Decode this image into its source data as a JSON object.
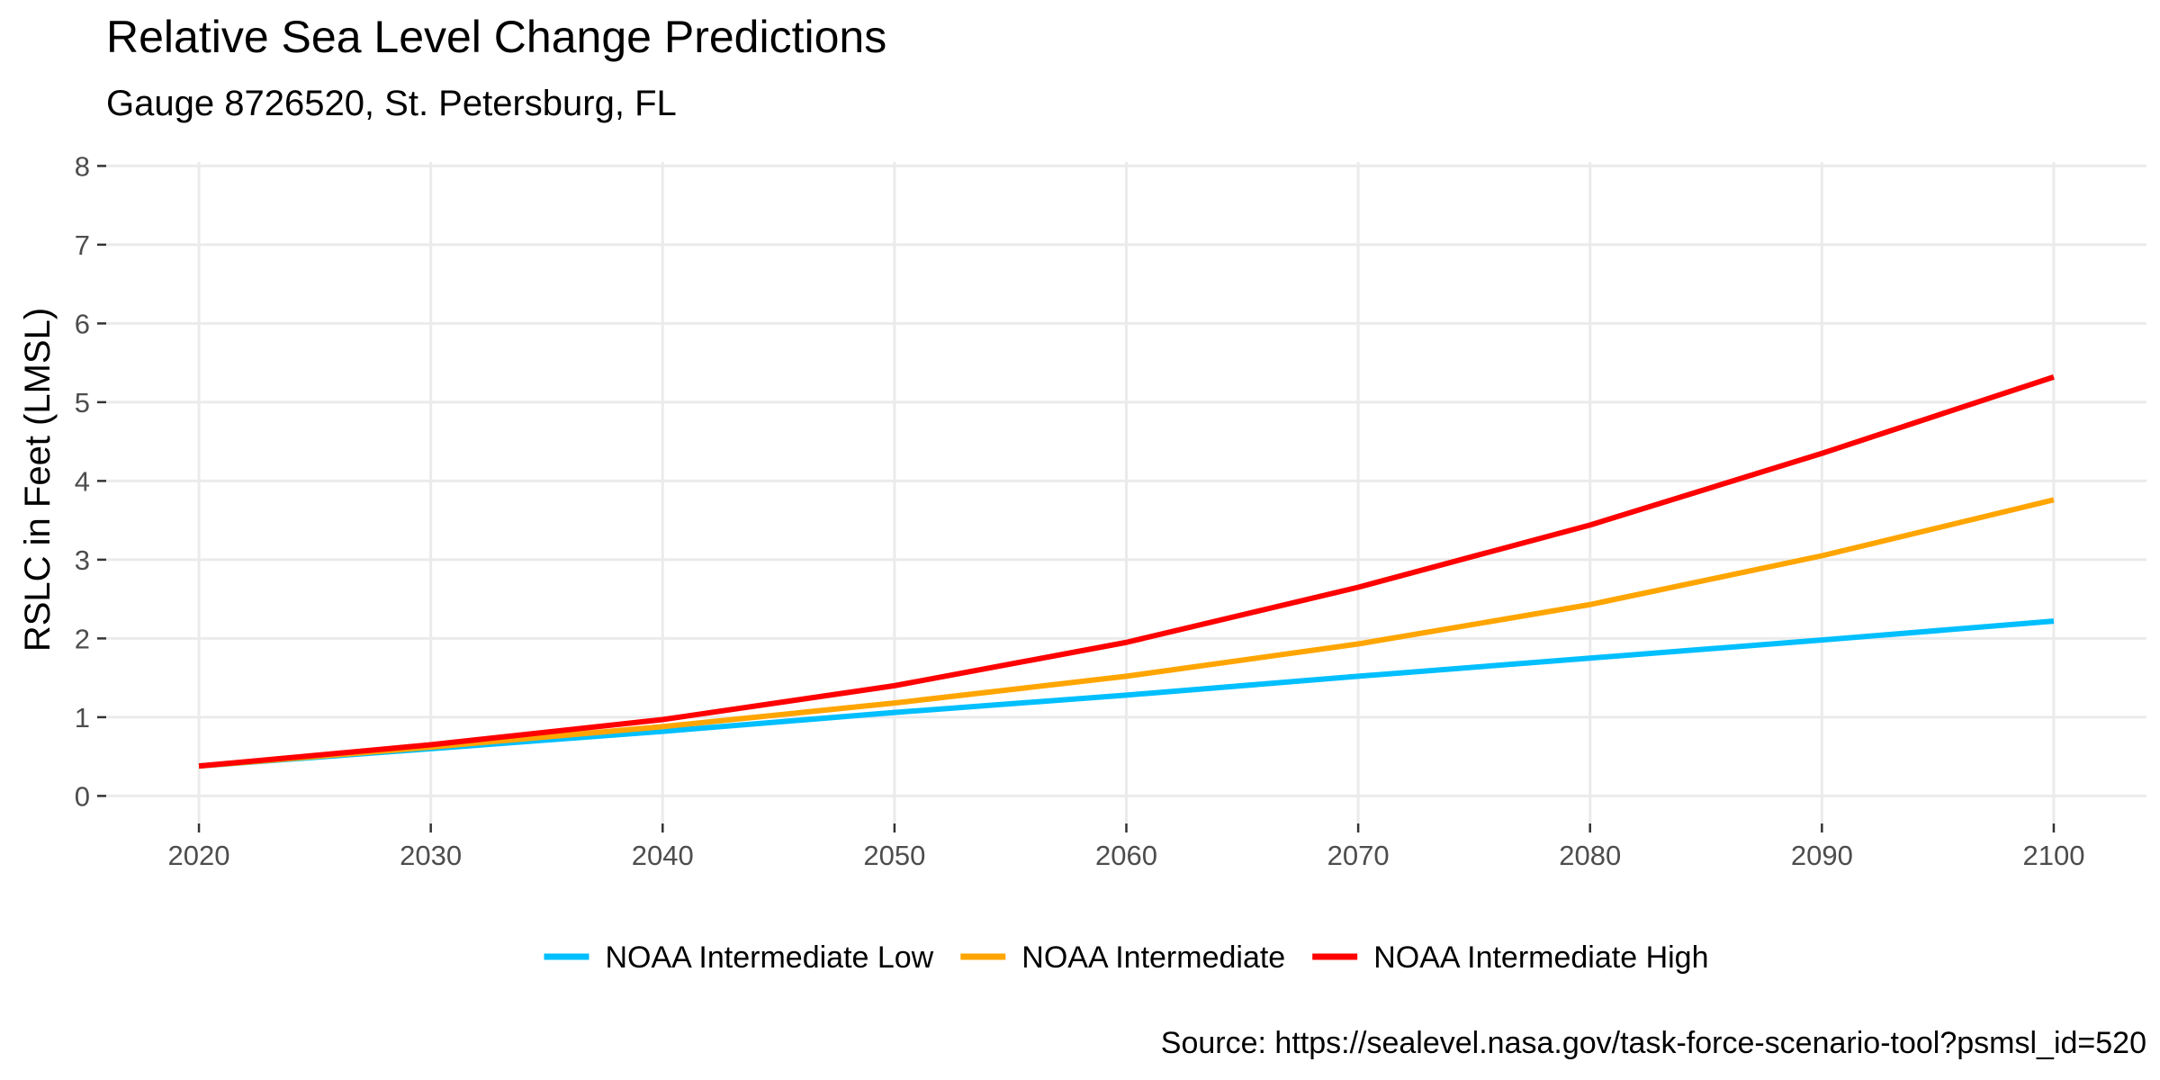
{
  "chart_data": {
    "type": "line",
    "title": "Relative Sea Level Change Predictions",
    "subtitle": "Gauge 8726520, St. Petersburg, FL",
    "xlabel": "",
    "ylabel": "RSLC in Feet (LMSL)",
    "caption": "Source: https://sealevel.nasa.gov/task-force-scenario-tool?psmsl_id=520",
    "xlim": [
      2016,
      2104
    ],
    "ylim": [
      -0.35,
      8.05
    ],
    "xticks": [
      2020,
      2030,
      2040,
      2050,
      2060,
      2070,
      2080,
      2090,
      2100
    ],
    "yticks": [
      0,
      1,
      2,
      3,
      4,
      5,
      6,
      7,
      8
    ],
    "grid": true,
    "legend_position": "bottom",
    "x": [
      2020,
      2030,
      2040,
      2050,
      2060,
      2070,
      2080,
      2090,
      2100
    ],
    "series": [
      {
        "name": "NOAA Intermediate Low",
        "color": "#00bfff",
        "values": [
          0.38,
          0.6,
          0.82,
          1.06,
          1.28,
          1.52,
          1.75,
          1.98,
          2.22
        ]
      },
      {
        "name": "NOAA Intermediate",
        "color": "#ffa500",
        "values": [
          0.38,
          0.62,
          0.88,
          1.18,
          1.52,
          1.93,
          2.43,
          3.05,
          3.76
        ]
      },
      {
        "name": "NOAA Intermediate High",
        "color": "#ff0000",
        "values": [
          0.38,
          0.65,
          0.97,
          1.4,
          1.95,
          2.65,
          3.44,
          4.35,
          5.32
        ]
      }
    ]
  }
}
